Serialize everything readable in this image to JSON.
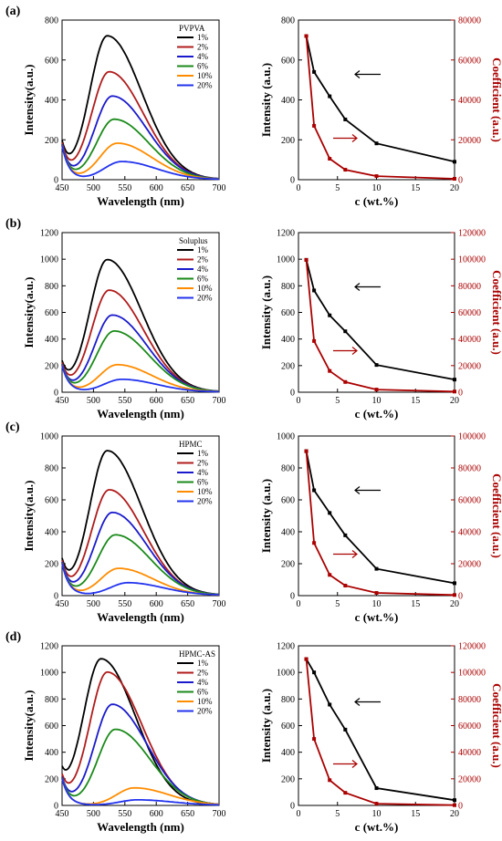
{
  "colors": {
    "s1": "#000000",
    "s2": "#b01c1c",
    "s4": "#1a1acc",
    "s6": "#1a8a1a",
    "s10": "#ff8c00",
    "s20": "#2233ee",
    "coef": "#aa0000"
  },
  "chart_data": [
    {
      "type": "line",
      "panel": "(a)",
      "legend_title": "PVPVA",
      "xlabel": "Wavelength (nm)",
      "ylabel": "Intensity(a.u.)",
      "xlim": [
        450,
        700
      ],
      "ylim": [
        0,
        800
      ],
      "xticks": [
        450,
        500,
        550,
        600,
        650,
        700
      ],
      "yticks": [
        0,
        200,
        400,
        600,
        800
      ],
      "series": [
        {
          "name": "1%",
          "peak_x": 522,
          "peak_y": 720,
          "start_y": 170,
          "end_y": 5
        },
        {
          "name": "2%",
          "peak_x": 525,
          "peak_y": 540,
          "start_y": 170,
          "end_y": 5
        },
        {
          "name": "4%",
          "peak_x": 530,
          "peak_y": 418,
          "start_y": 170,
          "end_y": 5
        },
        {
          "name": "6%",
          "peak_x": 533,
          "peak_y": 302,
          "start_y": 170,
          "end_y": 5
        },
        {
          "name": "10%",
          "peak_x": 538,
          "peak_y": 182,
          "start_y": 170,
          "end_y": 5
        },
        {
          "name": "20%",
          "peak_x": 545,
          "peak_y": 90,
          "start_y": 170,
          "end_y": 5
        }
      ]
    },
    {
      "type": "line",
      "panel": "",
      "dual_axis": true,
      "xlabel": "c (wt.%)",
      "ylabel": "Intensity (a.u.)",
      "y2label": "Coefficient (a.u.)",
      "xlim": [
        0,
        20
      ],
      "ylim": [
        0,
        800
      ],
      "y2lim": [
        0,
        80000
      ],
      "xticks": [
        0,
        5,
        10,
        15,
        20
      ],
      "yticks": [
        0,
        200,
        400,
        600,
        800
      ],
      "y2ticks": [
        0,
        20000,
        40000,
        60000,
        80000
      ],
      "x": [
        1,
        2,
        4,
        6,
        10,
        20
      ],
      "intensity": [
        720,
        540,
        418,
        302,
        182,
        90
      ],
      "coefficient": [
        72000,
        27000,
        10500,
        5000,
        1800,
        450
      ]
    },
    {
      "type": "line",
      "panel": "(b)",
      "legend_title": "Soluplus",
      "xlabel": "Wavelength (nm)",
      "ylabel": "Intensity(a.u.)",
      "xlim": [
        450,
        700
      ],
      "ylim": [
        0,
        1200
      ],
      "xticks": [
        450,
        500,
        550,
        600,
        650,
        700
      ],
      "yticks": [
        0,
        200,
        400,
        600,
        800,
        1000,
        1200
      ],
      "series": [
        {
          "name": "1%",
          "peak_x": 522,
          "peak_y": 995,
          "start_y": 200,
          "end_y": 10
        },
        {
          "name": "2%",
          "peak_x": 525,
          "peak_y": 765,
          "start_y": 200,
          "end_y": 10
        },
        {
          "name": "4%",
          "peak_x": 530,
          "peak_y": 578,
          "start_y": 200,
          "end_y": 10
        },
        {
          "name": "6%",
          "peak_x": 533,
          "peak_y": 458,
          "start_y": 200,
          "end_y": 10
        },
        {
          "name": "10%",
          "peak_x": 538,
          "peak_y": 205,
          "start_y": 200,
          "end_y": 10
        },
        {
          "name": "20%",
          "peak_x": 545,
          "peak_y": 95,
          "start_y": 200,
          "end_y": 10
        }
      ]
    },
    {
      "type": "line",
      "panel": "",
      "dual_axis": true,
      "xlabel": "c (wt.%)",
      "ylabel": "Intensity (a.u.)",
      "y2label": "Coefficient (a.u.)",
      "xlim": [
        0,
        20
      ],
      "ylim": [
        0,
        1200
      ],
      "y2lim": [
        0,
        120000
      ],
      "xticks": [
        0,
        5,
        10,
        15,
        20
      ],
      "yticks": [
        0,
        200,
        400,
        600,
        800,
        1000,
        1200
      ],
      "y2ticks": [
        0,
        20000,
        40000,
        60000,
        80000,
        100000,
        120000
      ],
      "x": [
        1,
        2,
        4,
        6,
        10,
        20
      ],
      "intensity": [
        995,
        765,
        578,
        458,
        205,
        95
      ],
      "coefficient": [
        99500,
        38500,
        16000,
        7700,
        2000,
        500
      ]
    },
    {
      "type": "line",
      "panel": "(c)",
      "legend_title": "HPMC",
      "xlabel": "Wavelength (nm)",
      "ylabel": "Intensity(a.u.)",
      "xlim": [
        450,
        700
      ],
      "ylim": [
        0,
        1000
      ],
      "xticks": [
        450,
        500,
        550,
        600,
        650,
        700
      ],
      "yticks": [
        0,
        200,
        400,
        600,
        800,
        1000
      ],
      "series": [
        {
          "name": "1%",
          "peak_x": 522,
          "peak_y": 905,
          "start_y": 200,
          "end_y": 15
        },
        {
          "name": "2%",
          "peak_x": 525,
          "peak_y": 660,
          "start_y": 200,
          "end_y": 15
        },
        {
          "name": "4%",
          "peak_x": 530,
          "peak_y": 518,
          "start_y": 200,
          "end_y": 15
        },
        {
          "name": "6%",
          "peak_x": 535,
          "peak_y": 378,
          "start_y": 200,
          "end_y": 15
        },
        {
          "name": "10%",
          "peak_x": 540,
          "peak_y": 168,
          "start_y": 200,
          "end_y": 15
        },
        {
          "name": "20%",
          "peak_x": 555,
          "peak_y": 78,
          "start_y": 200,
          "end_y": 15
        }
      ]
    },
    {
      "type": "line",
      "panel": "",
      "dual_axis": true,
      "xlabel": "c (wt.%)",
      "ylabel": "Intensity (a.u.)",
      "y2label": "Coefficient (a.u.)",
      "xlim": [
        0,
        20
      ],
      "ylim": [
        0,
        1000
      ],
      "y2lim": [
        0,
        100000
      ],
      "xticks": [
        0,
        5,
        10,
        15,
        20
      ],
      "yticks": [
        0,
        200,
        400,
        600,
        800,
        1000
      ],
      "y2ticks": [
        0,
        20000,
        40000,
        60000,
        80000,
        100000
      ],
      "x": [
        1,
        2,
        4,
        6,
        10,
        20
      ],
      "intensity": [
        905,
        660,
        518,
        378,
        168,
        78
      ],
      "coefficient": [
        90500,
        33000,
        13000,
        6300,
        1700,
        400
      ]
    },
    {
      "type": "line",
      "panel": "(d)",
      "legend_title": "HPMC-AS",
      "xlabel": "Wavelength (nm)",
      "ylabel": "Intensity(a.u.)",
      "xlim": [
        450,
        700
      ],
      "ylim": [
        0,
        1200
      ],
      "xticks": [
        450,
        500,
        550,
        600,
        650,
        700
      ],
      "yticks": [
        0,
        200,
        400,
        600,
        800,
        1000,
        1200
      ],
      "series": [
        {
          "name": "1%",
          "peak_x": 512,
          "peak_y": 1100,
          "start_y": 200,
          "end_y": 10
        },
        {
          "name": "2%",
          "peak_x": 522,
          "peak_y": 1000,
          "start_y": 200,
          "end_y": 10
        },
        {
          "name": "4%",
          "peak_x": 530,
          "peak_y": 758,
          "start_y": 200,
          "end_y": 10
        },
        {
          "name": "6%",
          "peak_x": 535,
          "peak_y": 570,
          "start_y": 200,
          "end_y": 10
        },
        {
          "name": "10%",
          "peak_x": 565,
          "peak_y": 130,
          "start_y": 200,
          "end_y": 10
        },
        {
          "name": "20%",
          "peak_x": 570,
          "peak_y": 40,
          "start_y": 200,
          "end_y": 10
        }
      ]
    },
    {
      "type": "line",
      "panel": "",
      "dual_axis": true,
      "xlabel": "c (wt.%)",
      "ylabel": "Intensity (a.u.)",
      "y2label": "Coefficient (a.u.)",
      "xlim": [
        0,
        20
      ],
      "ylim": [
        0,
        1200
      ],
      "y2lim": [
        0,
        120000
      ],
      "xticks": [
        0,
        5,
        10,
        15,
        20
      ],
      "yticks": [
        0,
        200,
        400,
        600,
        800,
        1000,
        1200
      ],
      "y2ticks": [
        0,
        20000,
        40000,
        60000,
        80000,
        100000,
        120000
      ],
      "x": [
        1,
        2,
        4,
        6,
        10,
        20
      ],
      "intensity": [
        1100,
        1000,
        758,
        570,
        130,
        40
      ],
      "coefficient": [
        110000,
        50000,
        19000,
        9500,
        1300,
        200
      ]
    }
  ]
}
